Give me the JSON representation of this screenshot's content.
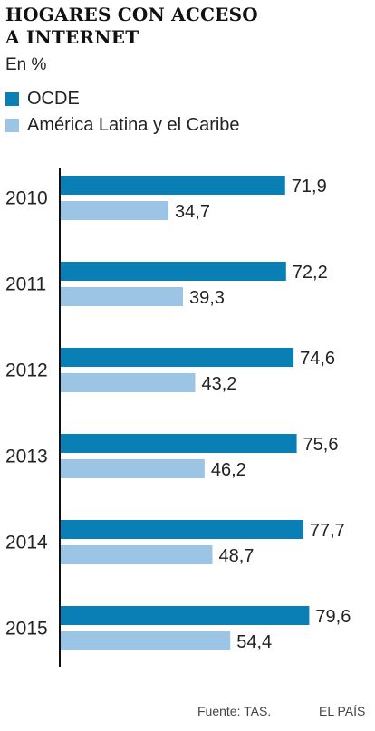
{
  "title_line1": "HOGARES CON ACCESO",
  "title_line2": "A INTERNET",
  "subtitle": "En %",
  "colors": {
    "ocde": "#0a7fb5",
    "alc": "#9cc4e4",
    "axis": "#111111"
  },
  "chart_data": {
    "type": "bar",
    "orientation": "horizontal",
    "categories": [
      "2010",
      "2011",
      "2012",
      "2013",
      "2014",
      "2015"
    ],
    "series": [
      {
        "name": "OCDE",
        "values": [
          71.9,
          72.2,
          74.6,
          75.6,
          77.7,
          79.6
        ]
      },
      {
        "name": "América Latina y el Caribe",
        "values": [
          34.7,
          39.3,
          43.2,
          46.2,
          48.7,
          54.4
        ]
      }
    ],
    "value_labels": [
      [
        "71,9",
        "72,2",
        "74,6",
        "75,6",
        "77,7",
        "79,6"
      ],
      [
        "34,7",
        "39,3",
        "43,2",
        "46,2",
        "48,7",
        "54,4"
      ]
    ],
    "title": "HOGARES CON ACCESO A INTERNET",
    "subtitle": "En %",
    "legend_position": "top-left",
    "grid": false
  },
  "footer": {
    "source": "Fuente: TAS.",
    "brand": "EL PAÍS"
  }
}
